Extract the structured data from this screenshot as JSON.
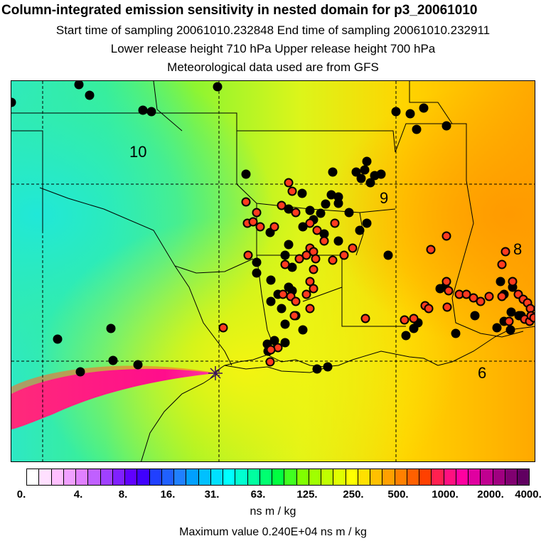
{
  "header": {
    "title": "Column-integrated emission sensitivity in nested domain for p3_20061010",
    "sampling_line": "Start time of sampling 20061010.232848     End time of sampling 20061010.232911",
    "release_line": "Lower release height  710 hPa       Upper release height  700 hPa",
    "met_line": "Meteorological data used are from GFS"
  },
  "map": {
    "contour_labels": [
      "10",
      "9",
      "8",
      "6"
    ],
    "colors": {
      "cyan": "#1fe8c8",
      "green": "#22f07a",
      "yellowgreen": "#b8f51a",
      "yellow": "#f2f20a",
      "orange": "#ffb000",
      "magenta": "#ff1a8c",
      "red_marker": "#ff3b1f",
      "black_marker": "#000000"
    }
  },
  "colorbar": {
    "tick_labels": [
      "0.",
      "4.",
      "8.",
      "16.",
      "31.",
      "63.",
      "125.",
      "250.",
      "500.",
      "1000.",
      "2000.",
      "4000."
    ],
    "segment_colors": [
      "#ffffff",
      "#ffe0ff",
      "#ffc0ff",
      "#f0a0ff",
      "#e080ff",
      "#c060ff",
      "#a040ff",
      "#8020ff",
      "#6000ff",
      "#4000ff",
      "#2040ff",
      "#2060ff",
      "#2080ff",
      "#00a0ff",
      "#00c0ff",
      "#00e0ff",
      "#00ffff",
      "#00ffd0",
      "#00ffa0",
      "#00ff70",
      "#00ff40",
      "#40ff20",
      "#80ff00",
      "#a0ff00",
      "#c0ff00",
      "#e0ff00",
      "#ffff00",
      "#ffe000",
      "#ffc000",
      "#ffa000",
      "#ff8000",
      "#ff6000",
      "#ff4000",
      "#ff2050",
      "#ff1080",
      "#ff00a0",
      "#e000a0",
      "#c00090",
      "#a00080",
      "#800070",
      "#600060"
    ],
    "unit": "ns m / kg",
    "max_text": "Maximum value  0.240E+04 ns m / kg"
  }
}
